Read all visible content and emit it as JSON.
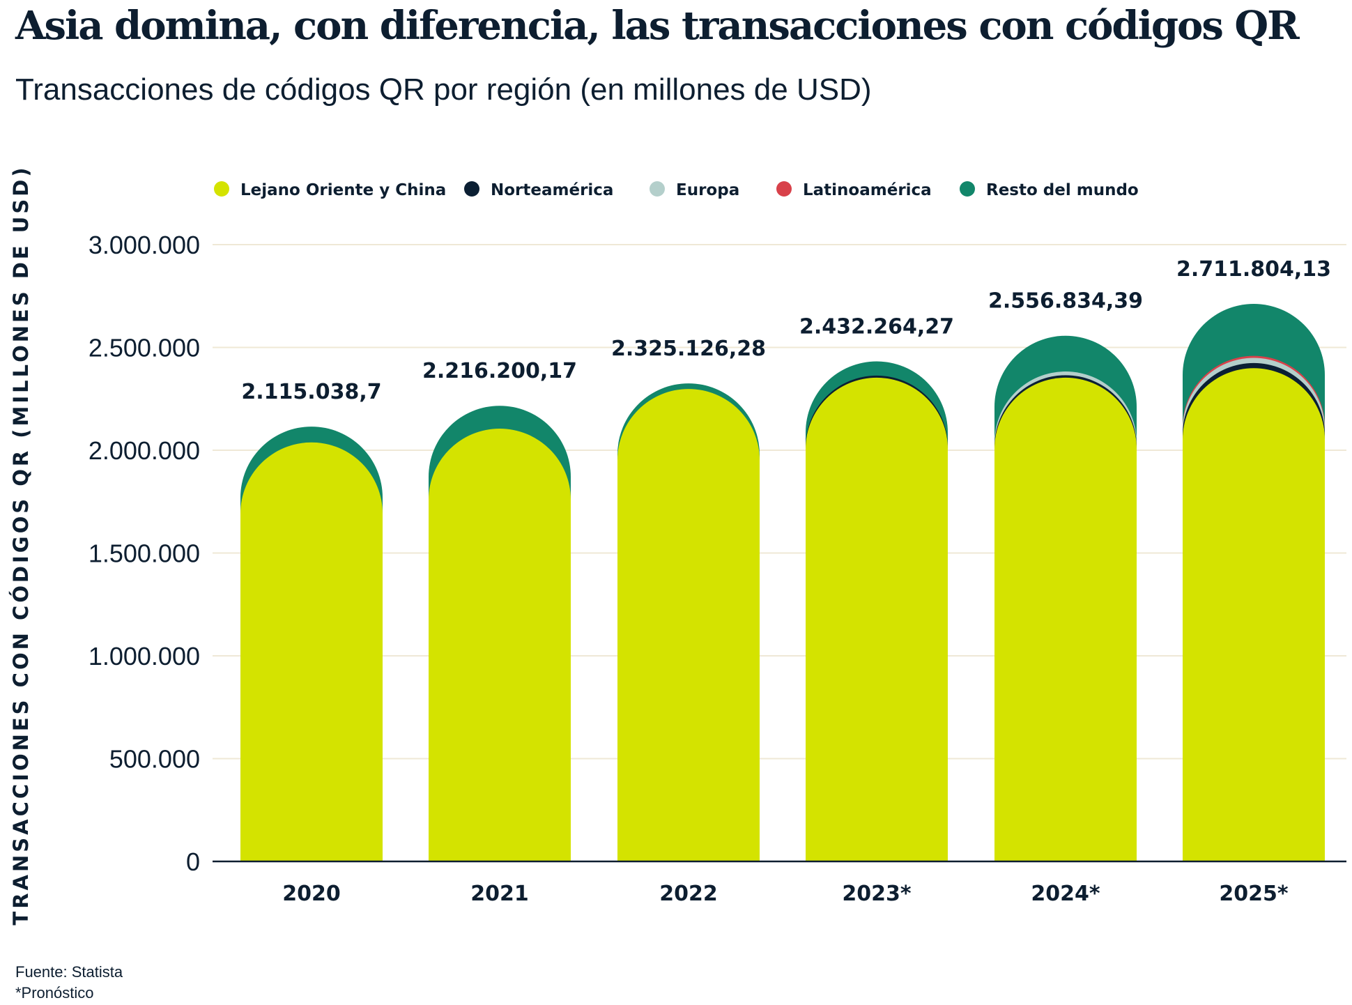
{
  "title": "Asia domina, con diferencia, las transacciones con códigos QR",
  "subtitle": "Transacciones de códigos QR por región (en millones de USD)",
  "footer": {
    "source": "Fuente: Statista",
    "note": "*Pronóstico"
  },
  "chart_data": {
    "type": "bar",
    "stacked": true,
    "bar_shape": "rounded-top",
    "ylabel": "TRANSACCIONES CON CÓDIGOS QR (MILLONES DE USD)",
    "ylim": [
      0,
      3000000
    ],
    "yticks": [
      0,
      500000,
      1000000,
      1500000,
      2000000,
      2500000,
      3000000
    ],
    "ytick_labels": [
      "0",
      "500.000",
      "1.000.000",
      "1.500.000",
      "2.000.000",
      "2.500.000",
      "3.000.000"
    ],
    "grid": true,
    "legend_position": "top",
    "categories": [
      "2020",
      "2021",
      "2022",
      "2023*",
      "2024*",
      "2025*"
    ],
    "totals": [
      2115038.7,
      2216200.17,
      2325126.28,
      2432264.27,
      2556834.39,
      2711804.13
    ],
    "total_labels": [
      "2.115.038,7",
      "2.216.200,17",
      "2.325.126,28",
      "2.432.264,27",
      "2.556.834,39",
      "2.711.804,13"
    ],
    "series": [
      {
        "name": "Lejano Oriente y China",
        "color": "#d4e300",
        "values": [
          2038000,
          2105000,
          2298000,
          2353000,
          2353000,
          2399000
        ]
      },
      {
        "name": "Norteamérica",
        "color": "#0b1f33",
        "values": [
          0,
          0,
          0,
          10000,
          12000,
          25000
        ]
      },
      {
        "name": "Europa",
        "color": "#b4cfcb",
        "values": [
          0,
          0,
          0,
          0,
          18000,
          25000
        ]
      },
      {
        "name": "Latinoamérica",
        "color": "#d8414a",
        "values": [
          0,
          0,
          0,
          0,
          0,
          10000
        ]
      },
      {
        "name": "Resto del mundo",
        "color": "#12866a",
        "values": [
          77038.7,
          111200.17,
          27126.28,
          69264.27,
          173834.39,
          252804.13
        ]
      }
    ]
  }
}
